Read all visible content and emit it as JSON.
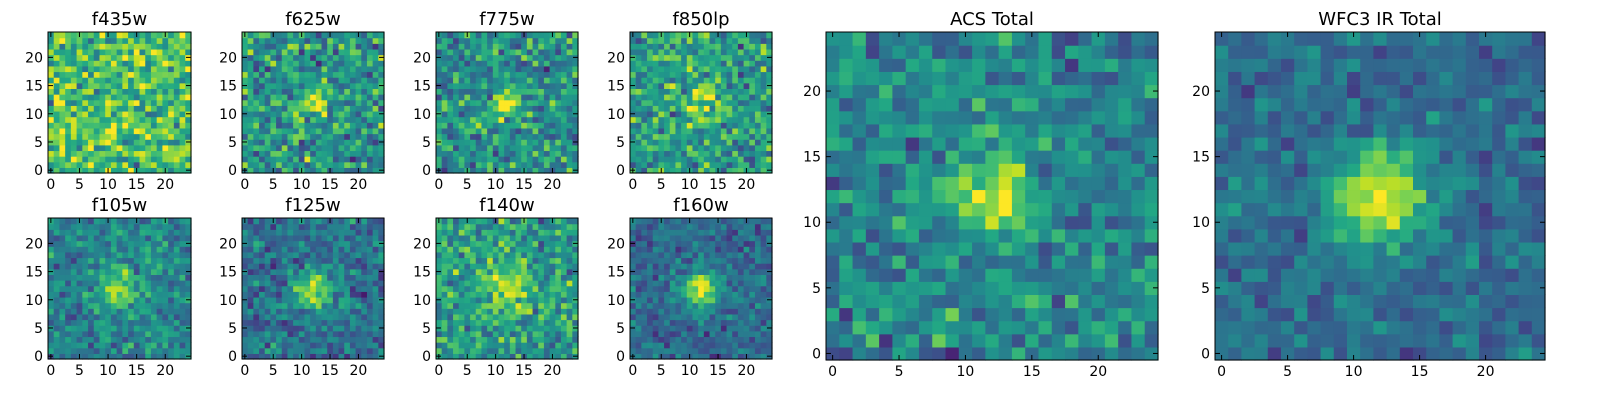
{
  "chart_data": [
    {
      "type": "heatmap",
      "title": "f435w",
      "xticks": [
        0,
        5,
        10,
        15,
        20
      ],
      "yticks": [
        0,
        5,
        10,
        15,
        20
      ],
      "xlim": [
        -0.5,
        24.5
      ],
      "ylim": [
        -0.5,
        24.5
      ],
      "grid_size": 25,
      "colormap": "viridis",
      "source_peak": [
        12,
        12
      ],
      "source_strength": 0.0,
      "source_width": 2.5,
      "noise": 0.34,
      "base": 0.7,
      "seed": 11
    },
    {
      "type": "heatmap",
      "title": "f625w",
      "xticks": [
        0,
        5,
        10,
        15,
        20
      ],
      "yticks": [
        0,
        5,
        10,
        15,
        20
      ],
      "xlim": [
        -0.5,
        24.5
      ],
      "ylim": [
        -0.5,
        24.5
      ],
      "grid_size": 25,
      "colormap": "viridis",
      "source_peak": [
        12,
        12
      ],
      "source_strength": 0.35,
      "source_width": 1.8,
      "noise": 0.32,
      "base": 0.52,
      "seed": 23
    },
    {
      "type": "heatmap",
      "title": "f775w",
      "xticks": [
        0,
        5,
        10,
        15,
        20
      ],
      "yticks": [
        0,
        5,
        10,
        15,
        20
      ],
      "xlim": [
        -0.5,
        24.5
      ],
      "ylim": [
        -0.5,
        24.5
      ],
      "grid_size": 25,
      "colormap": "viridis",
      "source_peak": [
        12,
        12
      ],
      "source_strength": 0.42,
      "source_width": 1.8,
      "noise": 0.3,
      "base": 0.5,
      "seed": 37
    },
    {
      "type": "heatmap",
      "title": "f850lp",
      "xticks": [
        0,
        5,
        10,
        15,
        20
      ],
      "yticks": [
        0,
        5,
        10,
        15,
        20
      ],
      "xlim": [
        -0.5,
        24.5
      ],
      "ylim": [
        -0.5,
        24.5
      ],
      "grid_size": 25,
      "colormap": "viridis",
      "source_peak": [
        12,
        12
      ],
      "source_strength": 0.35,
      "source_width": 2.0,
      "noise": 0.3,
      "base": 0.55,
      "seed": 41
    },
    {
      "type": "heatmap",
      "title": "f105w",
      "xticks": [
        0,
        5,
        10,
        15,
        20
      ],
      "yticks": [
        0,
        5,
        10,
        15,
        20
      ],
      "xlim": [
        -0.5,
        24.5
      ],
      "ylim": [
        -0.5,
        24.5
      ],
      "grid_size": 25,
      "colormap": "viridis",
      "source_peak": [
        12,
        12
      ],
      "source_strength": 0.45,
      "source_width": 2.3,
      "noise": 0.22,
      "base": 0.45,
      "seed": 53
    },
    {
      "type": "heatmap",
      "title": "f125w",
      "xticks": [
        0,
        5,
        10,
        15,
        20
      ],
      "yticks": [
        0,
        5,
        10,
        15,
        20
      ],
      "xlim": [
        -0.5,
        24.5
      ],
      "ylim": [
        -0.5,
        24.5
      ],
      "grid_size": 25,
      "colormap": "viridis",
      "source_peak": [
        12,
        12
      ],
      "source_strength": 0.55,
      "source_width": 2.3,
      "noise": 0.22,
      "base": 0.38,
      "seed": 67
    },
    {
      "type": "heatmap",
      "title": "f140w",
      "xticks": [
        0,
        5,
        10,
        15,
        20
      ],
      "yticks": [
        0,
        5,
        10,
        15,
        20
      ],
      "xlim": [
        -0.5,
        24.5
      ],
      "ylim": [
        -0.5,
        24.5
      ],
      "grid_size": 25,
      "colormap": "viridis",
      "source_peak": [
        12,
        12
      ],
      "source_strength": 0.32,
      "source_width": 2.8,
      "noise": 0.28,
      "base": 0.55,
      "seed": 79
    },
    {
      "type": "heatmap",
      "title": "f160w",
      "xticks": [
        0,
        5,
        10,
        15,
        20
      ],
      "yticks": [
        0,
        5,
        10,
        15,
        20
      ],
      "xlim": [
        -0.5,
        24.5
      ],
      "ylim": [
        -0.5,
        24.5
      ],
      "grid_size": 25,
      "colormap": "viridis",
      "source_peak": [
        12,
        12
      ],
      "source_strength": 0.6,
      "source_width": 2.2,
      "noise": 0.18,
      "base": 0.35,
      "seed": 83
    },
    {
      "type": "heatmap",
      "title": "ACS Total",
      "xticks": [
        0,
        5,
        10,
        15,
        20
      ],
      "yticks": [
        0,
        5,
        10,
        15,
        20
      ],
      "xlim": [
        -0.5,
        24.5
      ],
      "ylim": [
        -0.5,
        24.5
      ],
      "grid_size": 25,
      "colormap": "viridis",
      "source_peak": [
        12,
        12
      ],
      "source_strength": 0.55,
      "source_width": 1.9,
      "noise": 0.24,
      "base": 0.45,
      "seed": 97
    },
    {
      "type": "heatmap",
      "title": "WFC3 IR Total",
      "xticks": [
        0,
        5,
        10,
        15,
        20
      ],
      "yticks": [
        0,
        5,
        10,
        15,
        20
      ],
      "xlim": [
        -0.5,
        24.5
      ],
      "ylim": [
        -0.5,
        24.5
      ],
      "grid_size": 25,
      "colormap": "viridis",
      "source_peak": [
        12,
        12
      ],
      "source_strength": 0.62,
      "source_width": 2.6,
      "noise": 0.16,
      "base": 0.36,
      "seed": 101
    }
  ]
}
